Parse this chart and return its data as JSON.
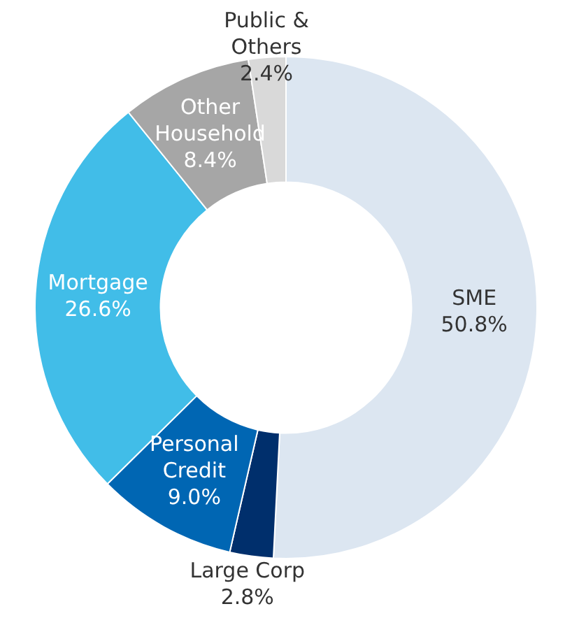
{
  "chart_data": {
    "type": "donut",
    "categories": [
      "SME",
      "Large Corp",
      "Personal Credit",
      "Mortgage",
      "Other Household",
      "Public & Others"
    ],
    "values": [
      50.8,
      2.8,
      9.0,
      26.6,
      8.4,
      2.4
    ],
    "value_labels": [
      "50.8%",
      "2.8%",
      "9.0%",
      "26.6%",
      "8.4%",
      "2.4%"
    ],
    "colors": [
      "#dce6f1",
      "#002f6c",
      "#0066b3",
      "#41bde8",
      "#a6a6a6",
      "#d9d9d9"
    ],
    "legend": false
  }
}
